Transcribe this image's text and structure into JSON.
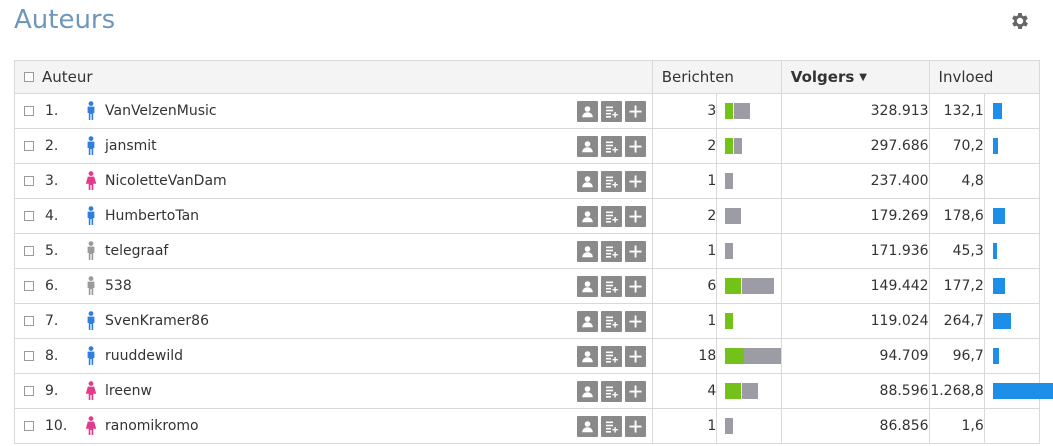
{
  "header": {
    "title": "Auteurs",
    "settings_icon": "gear-icon"
  },
  "table": {
    "columns": {
      "auteur": "Auteur",
      "berichten": "Berichten",
      "volgers": "Volgers",
      "invloed": "Invloed"
    },
    "sorted_column": "volgers",
    "sort_direction": "descending",
    "row_actions": [
      "profile-icon",
      "add-to-list-icon",
      "plus-icon"
    ],
    "rows": [
      {
        "rank": "1.",
        "name": "VanVelzenMusic",
        "gender": "male",
        "berichten": "3",
        "berichten_green": 1,
        "volgers": "328.913",
        "invloed": "132,1",
        "invloed_value": 132.1
      },
      {
        "rank": "2.",
        "name": "jansmit",
        "gender": "male",
        "berichten": "2",
        "berichten_green": 1,
        "volgers": "297.686",
        "invloed": "70,2",
        "invloed_value": 70.2
      },
      {
        "rank": "3.",
        "name": "NicoletteVanDam",
        "gender": "female",
        "berichten": "1",
        "berichten_green": 0,
        "volgers": "237.400",
        "invloed": "4,8",
        "invloed_value": 4.8
      },
      {
        "rank": "4.",
        "name": "HumbertoTan",
        "gender": "male",
        "berichten": "2",
        "berichten_green": 0,
        "volgers": "179.269",
        "invloed": "178,6",
        "invloed_value": 178.6
      },
      {
        "rank": "5.",
        "name": "telegraaf",
        "gender": "unknown",
        "berichten": "1",
        "berichten_green": 0,
        "volgers": "171.936",
        "invloed": "45,3",
        "invloed_value": 45.3
      },
      {
        "rank": "6.",
        "name": "538",
        "gender": "unknown",
        "berichten": "6",
        "berichten_green": 2,
        "volgers": "149.442",
        "invloed": "177,2",
        "invloed_value": 177.2
      },
      {
        "rank": "7.",
        "name": "SvenKramer86",
        "gender": "male",
        "berichten": "1",
        "berichten_green": 1,
        "volgers": "119.024",
        "invloed": "264,7",
        "invloed_value": 264.7
      },
      {
        "rank": "8.",
        "name": "ruuddewild",
        "gender": "male",
        "berichten": "18",
        "berichten_green": 6,
        "volgers": "94.709",
        "invloed": "96,7",
        "invloed_value": 96.7
      },
      {
        "rank": "9.",
        "name": "lreenw",
        "gender": "female",
        "berichten": "4",
        "berichten_green": 2,
        "volgers": "88.596",
        "invloed": "1.268,8",
        "invloed_value": 1268.8
      },
      {
        "rank": "10.",
        "name": "ranomikromo",
        "gender": "female",
        "berichten": "1",
        "berichten_green": 0,
        "volgers": "86.856",
        "invloed": "1,6",
        "invloed_value": 1.6
      }
    ]
  },
  "colors": {
    "title": "#6f97ba",
    "male": "#2f7fe0",
    "female": "#e23b8c",
    "unknown": "#9a9a9a",
    "spark_green": "#72c21a",
    "spark_gray": "#9c9ca4",
    "invloed_bar": "#1e8fe8"
  }
}
